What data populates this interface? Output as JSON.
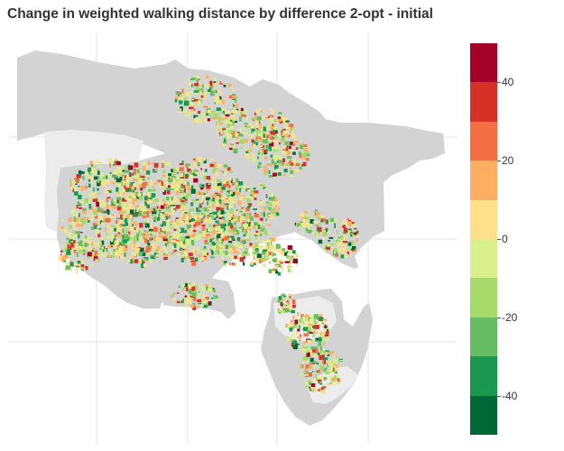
{
  "title": "Change in weighted walking distance by difference 2-opt - initial",
  "legend": {
    "min": -50,
    "max": 50,
    "bins": [
      {
        "from": 40,
        "to": 50,
        "color": "#a50026"
      },
      {
        "from": 30,
        "to": 40,
        "color": "#d73027"
      },
      {
        "from": 20,
        "to": 30,
        "color": "#f46d43"
      },
      {
        "from": 10,
        "to": 20,
        "color": "#fdae61"
      },
      {
        "from": 0,
        "to": 10,
        "color": "#fee08b"
      },
      {
        "from": -10,
        "to": 0,
        "color": "#d9ef8b"
      },
      {
        "from": -20,
        "to": -10,
        "color": "#a6d96a"
      },
      {
        "from": -30,
        "to": -20,
        "color": "#66bd63"
      },
      {
        "from": -40,
        "to": -30,
        "color": "#1a9850"
      },
      {
        "from": -50,
        "to": -40,
        "color": "#006837"
      }
    ],
    "ticks": [
      {
        "value": 40,
        "label": "40"
      },
      {
        "value": 20,
        "label": "20"
      },
      {
        "value": 0,
        "label": "0"
      },
      {
        "value": -20,
        "label": "-20"
      },
      {
        "value": -40,
        "label": "-40"
      }
    ]
  },
  "map": {
    "basemap_color": "#d3d3d3",
    "light_area_color": "#ececec",
    "grid_color": "#e4e4e4",
    "background_color": "#ffffff",
    "has_grid": true
  }
}
